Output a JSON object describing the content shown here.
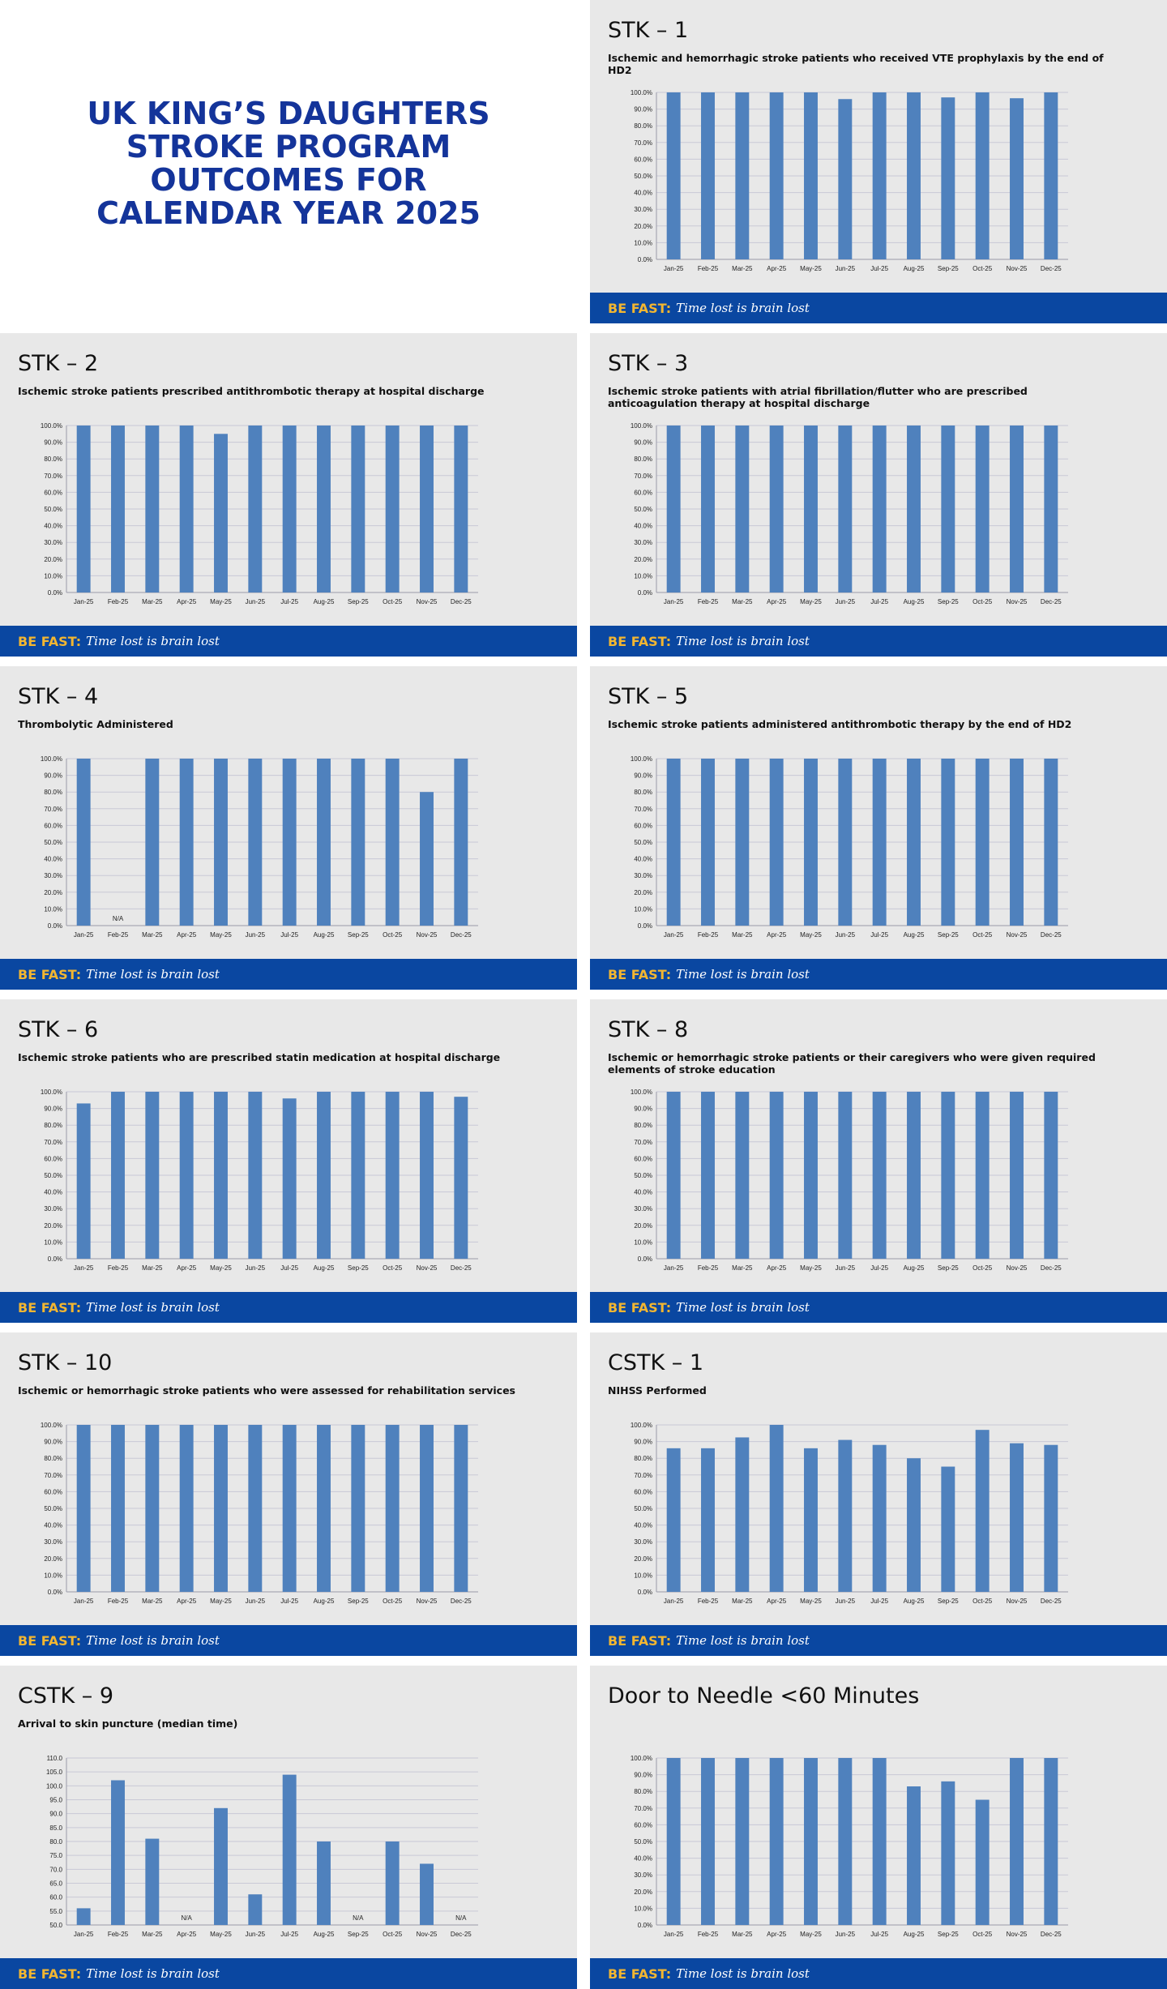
{
  "header": {
    "title": [
      "UK KING’S DAUGHTERS",
      "STROKE PROGRAM",
      "OUTCOMES FOR",
      "CALENDAR YEAR 2025"
    ]
  },
  "footer": {
    "label": "BE FAST:",
    "slogan": "Time lost is brain lost"
  },
  "chart_data": [
    {
      "type": "bar",
      "title": "STK – 1",
      "subtitle": "Ischemic and hemorrhagic stroke patients who received VTE prophylaxis by the end of HD2",
      "categories": [
        "Jan-25",
        "Feb-25",
        "Mar-25",
        "Apr-25",
        "May-25",
        "Jun-25",
        "Jul-25",
        "Aug-25",
        "Sep-25",
        "Oct-25",
        "Nov-25",
        "Dec-25"
      ],
      "values": [
        100,
        100,
        100,
        100,
        100,
        96,
        100,
        100,
        97,
        100,
        96.5,
        100
      ],
      "color": "#4f81bd",
      "ylim": [
        0,
        100
      ],
      "grid": true,
      "yticks": [
        {
          "value": 0,
          "label": "0.0%"
        },
        {
          "value": 10,
          "label": "10.0%"
        },
        {
          "value": 20,
          "label": "20.0%"
        },
        {
          "value": 30,
          "label": "30.0%"
        },
        {
          "value": 40,
          "label": "40.0%"
        },
        {
          "value": 50,
          "label": "50.0%"
        },
        {
          "value": 60,
          "label": "60.0%"
        },
        {
          "value": 70,
          "label": "70.0%"
        },
        {
          "value": 80,
          "label": "80.0%"
        },
        {
          "value": 90,
          "label": "90.0%"
        },
        {
          "value": 100,
          "label": "100.0%"
        }
      ]
    },
    {
      "type": "bar",
      "title": "STK – 2",
      "subtitle": "Ischemic stroke patients prescribed antithrombotic therapy at hospital discharge",
      "categories": [
        "Jan-25",
        "Feb-25",
        "Mar-25",
        "Apr-25",
        "May-25",
        "Jun-25",
        "Jul-25",
        "Aug-25",
        "Sep-25",
        "Oct-25",
        "Nov-25",
        "Dec-25"
      ],
      "values": [
        100,
        100,
        100,
        100,
        95,
        100,
        100,
        100,
        100,
        100,
        100,
        100
      ],
      "color": "#4f81bd",
      "ylim": [
        0,
        100
      ],
      "grid": true,
      "yticks": [
        {
          "value": 0,
          "label": "0.0%"
        },
        {
          "value": 10,
          "label": "10.0%"
        },
        {
          "value": 20,
          "label": "20.0%"
        },
        {
          "value": 30,
          "label": "30.0%"
        },
        {
          "value": 40,
          "label": "40.0%"
        },
        {
          "value": 50,
          "label": "50.0%"
        },
        {
          "value": 60,
          "label": "60.0%"
        },
        {
          "value": 70,
          "label": "70.0%"
        },
        {
          "value": 80,
          "label": "80.0%"
        },
        {
          "value": 90,
          "label": "90.0%"
        },
        {
          "value": 100,
          "label": "100.0%"
        }
      ]
    },
    {
      "type": "bar",
      "title": "STK – 3",
      "subtitle": "Ischemic stroke patients with atrial fibrillation/flutter who are prescribed anticoagulation therapy at hospital discharge",
      "categories": [
        "Jan-25",
        "Feb-25",
        "Mar-25",
        "Apr-25",
        "May-25",
        "Jun-25",
        "Jul-25",
        "Aug-25",
        "Sep-25",
        "Oct-25",
        "Nov-25",
        "Dec-25"
      ],
      "values": [
        100,
        100,
        100,
        100,
        100,
        100,
        100,
        100,
        100,
        100,
        100,
        100
      ],
      "color": "#4f81bd",
      "ylim": [
        0,
        100
      ],
      "grid": true,
      "yticks": [
        {
          "value": 0,
          "label": "0.0%"
        },
        {
          "value": 10,
          "label": "10.0%"
        },
        {
          "value": 20,
          "label": "20.0%"
        },
        {
          "value": 30,
          "label": "30.0%"
        },
        {
          "value": 40,
          "label": "40.0%"
        },
        {
          "value": 50,
          "label": "50.0%"
        },
        {
          "value": 60,
          "label": "60.0%"
        },
        {
          "value": 70,
          "label": "70.0%"
        },
        {
          "value": 80,
          "label": "80.0%"
        },
        {
          "value": 90,
          "label": "90.0%"
        },
        {
          "value": 100,
          "label": "100.0%"
        }
      ]
    },
    {
      "type": "bar",
      "title": "STK – 4",
      "subtitle": "Thrombolytic Administered",
      "categories": [
        "Jan-25",
        "Feb-25",
        "Mar-25",
        "Apr-25",
        "May-25",
        "Jun-25",
        "Jul-25",
        "Aug-25",
        "Sep-25",
        "Oct-25",
        "Nov-25",
        "Dec-25"
      ],
      "values": [
        100,
        null,
        100,
        100,
        100,
        100,
        100,
        100,
        100,
        100,
        80,
        100
      ],
      "value_labels": [
        null,
        "N/A",
        null,
        null,
        null,
        null,
        null,
        null,
        null,
        null,
        null,
        null
      ],
      "color": "#4f81bd",
      "ylim": [
        0,
        100
      ],
      "grid": true,
      "yticks": [
        {
          "value": 0,
          "label": "0.0%"
        },
        {
          "value": 10,
          "label": "10.0%"
        },
        {
          "value": 20,
          "label": "20.0%"
        },
        {
          "value": 30,
          "label": "30.0%"
        },
        {
          "value": 40,
          "label": "40.0%"
        },
        {
          "value": 50,
          "label": "50.0%"
        },
        {
          "value": 60,
          "label": "60.0%"
        },
        {
          "value": 70,
          "label": "70.0%"
        },
        {
          "value": 80,
          "label": "80.0%"
        },
        {
          "value": 90,
          "label": "90.0%"
        },
        {
          "value": 100,
          "label": "100.0%"
        }
      ]
    },
    {
      "type": "bar",
      "title": "STK – 5",
      "subtitle": "Ischemic stroke patients administered antithrombotic therapy by the end of HD2",
      "categories": [
        "Jan-25",
        "Feb-25",
        "Mar-25",
        "Apr-25",
        "May-25",
        "Jun-25",
        "Jul-25",
        "Aug-25",
        "Sep-25",
        "Oct-25",
        "Nov-25",
        "Dec-25"
      ],
      "values": [
        100,
        100,
        100,
        100,
        100,
        100,
        100,
        100,
        100,
        100,
        100,
        100
      ],
      "color": "#4f81bd",
      "ylim": [
        0,
        100
      ],
      "grid": true,
      "yticks": [
        {
          "value": 0,
          "label": "0.0%"
        },
        {
          "value": 10,
          "label": "10.0%"
        },
        {
          "value": 20,
          "label": "20.0%"
        },
        {
          "value": 30,
          "label": "30.0%"
        },
        {
          "value": 40,
          "label": "40.0%"
        },
        {
          "value": 50,
          "label": "50.0%"
        },
        {
          "value": 60,
          "label": "60.0%"
        },
        {
          "value": 70,
          "label": "70.0%"
        },
        {
          "value": 80,
          "label": "80.0%"
        },
        {
          "value": 90,
          "label": "90.0%"
        },
        {
          "value": 100,
          "label": "100.0%"
        }
      ]
    },
    {
      "type": "bar",
      "title": "STK – 6",
      "subtitle": "Ischemic stroke patients who are prescribed statin medication at hospital discharge",
      "categories": [
        "Jan-25",
        "Feb-25",
        "Mar-25",
        "Apr-25",
        "May-25",
        "Jun-25",
        "Jul-25",
        "Aug-25",
        "Sep-25",
        "Oct-25",
        "Nov-25",
        "Dec-25"
      ],
      "values": [
        93,
        100,
        100,
        100,
        100,
        100,
        96,
        100,
        100,
        100,
        100,
        97
      ],
      "color": "#4f81bd",
      "ylim": [
        0,
        100
      ],
      "grid": true,
      "yticks": [
        {
          "value": 0,
          "label": "0.0%"
        },
        {
          "value": 10,
          "label": "10.0%"
        },
        {
          "value": 20,
          "label": "20.0%"
        },
        {
          "value": 30,
          "label": "30.0%"
        },
        {
          "value": 40,
          "label": "40.0%"
        },
        {
          "value": 50,
          "label": "50.0%"
        },
        {
          "value": 60,
          "label": "60.0%"
        },
        {
          "value": 70,
          "label": "70.0%"
        },
        {
          "value": 80,
          "label": "80.0%"
        },
        {
          "value": 90,
          "label": "90.0%"
        },
        {
          "value": 100,
          "label": "100.0%"
        }
      ]
    },
    {
      "type": "bar",
      "title": "STK – 8",
      "subtitle": "Ischemic or hemorrhagic stroke patients or their caregivers who were given required elements of stroke education",
      "categories": [
        "Jan-25",
        "Feb-25",
        "Mar-25",
        "Apr-25",
        "May-25",
        "Jun-25",
        "Jul-25",
        "Aug-25",
        "Sep-25",
        "Oct-25",
        "Nov-25",
        "Dec-25"
      ],
      "values": [
        100,
        100,
        100,
        100,
        100,
        100,
        100,
        100,
        100,
        100,
        100,
        100
      ],
      "color": "#4f81bd",
      "ylim": [
        0,
        100
      ],
      "grid": true,
      "yticks": [
        {
          "value": 0,
          "label": "0.0%"
        },
        {
          "value": 10,
          "label": "10.0%"
        },
        {
          "value": 20,
          "label": "20.0%"
        },
        {
          "value": 30,
          "label": "30.0%"
        },
        {
          "value": 40,
          "label": "40.0%"
        },
        {
          "value": 50,
          "label": "50.0%"
        },
        {
          "value": 60,
          "label": "60.0%"
        },
        {
          "value": 70,
          "label": "70.0%"
        },
        {
          "value": 80,
          "label": "80.0%"
        },
        {
          "value": 90,
          "label": "90.0%"
        },
        {
          "value": 100,
          "label": "100.0%"
        }
      ]
    },
    {
      "type": "bar",
      "title": "STK – 10",
      "subtitle": "Ischemic or hemorrhagic stroke patients who were assessed for rehabilitation services",
      "categories": [
        "Jan-25",
        "Feb-25",
        "Mar-25",
        "Apr-25",
        "May-25",
        "Jun-25",
        "Jul-25",
        "Aug-25",
        "Sep-25",
        "Oct-25",
        "Nov-25",
        "Dec-25"
      ],
      "values": [
        100,
        100,
        100,
        100,
        100,
        100,
        100,
        100,
        100,
        100,
        100,
        100
      ],
      "color": "#4f81bd",
      "ylim": [
        0,
        100
      ],
      "grid": true,
      "yticks": [
        {
          "value": 0,
          "label": "0.0%"
        },
        {
          "value": 10,
          "label": "10.0%"
        },
        {
          "value": 20,
          "label": "20.0%"
        },
        {
          "value": 30,
          "label": "30.0%"
        },
        {
          "value": 40,
          "label": "40.0%"
        },
        {
          "value": 50,
          "label": "50.0%"
        },
        {
          "value": 60,
          "label": "60.0%"
        },
        {
          "value": 70,
          "label": "70.0%"
        },
        {
          "value": 80,
          "label": "80.0%"
        },
        {
          "value": 90,
          "label": "90.0%"
        },
        {
          "value": 100,
          "label": "100.0%"
        }
      ]
    },
    {
      "type": "bar",
      "title": "CSTK – 1",
      "subtitle": "NIHSS Performed",
      "categories": [
        "Jan-25",
        "Feb-25",
        "Mar-25",
        "Apr-25",
        "May-25",
        "Jun-25",
        "Jul-25",
        "Aug-25",
        "Sep-25",
        "Oct-25",
        "Nov-25",
        "Dec-25"
      ],
      "values": [
        86,
        86,
        92.5,
        100,
        86,
        91,
        88,
        80,
        75,
        97,
        89,
        88
      ],
      "color": "#4f81bd",
      "ylim": [
        0,
        100
      ],
      "grid": true,
      "yticks": [
        {
          "value": 0,
          "label": "0.0%"
        },
        {
          "value": 10,
          "label": "10.0%"
        },
        {
          "value": 20,
          "label": "20.0%"
        },
        {
          "value": 30,
          "label": "30.0%"
        },
        {
          "value": 40,
          "label": "40.0%"
        },
        {
          "value": 50,
          "label": "50.0%"
        },
        {
          "value": 60,
          "label": "60.0%"
        },
        {
          "value": 70,
          "label": "70.0%"
        },
        {
          "value": 80,
          "label": "80.0%"
        },
        {
          "value": 90,
          "label": "90.0%"
        },
        {
          "value": 100,
          "label": "100.0%"
        }
      ]
    },
    {
      "type": "bar",
      "title": "CSTK – 9",
      "subtitle": "Arrival to skin puncture (median time)",
      "categories": [
        "Jan-25",
        "Feb-25",
        "Mar-25",
        "Apr-25",
        "May-25",
        "Jun-25",
        "Jul-25",
        "Aug-25",
        "Sep-25",
        "Oct-25",
        "Nov-25",
        "Dec-25"
      ],
      "values": [
        56,
        102,
        81,
        null,
        92,
        61,
        104,
        80,
        null,
        80,
        72,
        null
      ],
      "value_labels": [
        null,
        null,
        null,
        "N/A",
        null,
        null,
        null,
        null,
        "N/A",
        null,
        null,
        "N/A"
      ],
      "color": "#4f81bd",
      "ylim": [
        50,
        110
      ],
      "grid": true,
      "yticks": [
        {
          "value": 50,
          "label": "50.0"
        },
        {
          "value": 55,
          "label": "55.0"
        },
        {
          "value": 60,
          "label": "60.0"
        },
        {
          "value": 65,
          "label": "65.0"
        },
        {
          "value": 70,
          "label": "70.0"
        },
        {
          "value": 75,
          "label": "75.0"
        },
        {
          "value": 80,
          "label": "80.0"
        },
        {
          "value": 85,
          "label": "85.0"
        },
        {
          "value": 90,
          "label": "90.0"
        },
        {
          "value": 95,
          "label": "95.0"
        },
        {
          "value": 100,
          "label": "100.0"
        },
        {
          "value": 105,
          "label": "105.0"
        },
        {
          "value": 110,
          "label": "110.0"
        }
      ]
    },
    {
      "type": "bar",
      "title": "Door to Needle <60 Minutes",
      "categories": [
        "Jan-25",
        "Feb-25",
        "Mar-25",
        "Apr-25",
        "May-25",
        "Jun-25",
        "Jul-25",
        "Aug-25",
        "Sep-25",
        "Oct-25",
        "Nov-25",
        "Dec-25"
      ],
      "values": [
        100,
        100,
        100,
        100,
        100,
        100,
        100,
        83,
        86,
        75,
        100,
        100
      ],
      "color": "#4f81bd",
      "ylim": [
        0,
        100
      ],
      "grid": true,
      "yticks": [
        {
          "value": 0,
          "label": "0.0%"
        },
        {
          "value": 10,
          "label": "10.0%"
        },
        {
          "value": 20,
          "label": "20.0%"
        },
        {
          "value": 30,
          "label": "30.0%"
        },
        {
          "value": 40,
          "label": "40.0%"
        },
        {
          "value": 50,
          "label": "50.0%"
        },
        {
          "value": 60,
          "label": "60.0%"
        },
        {
          "value": 70,
          "label": "70.0%"
        },
        {
          "value": 80,
          "label": "80.0%"
        },
        {
          "value": 90,
          "label": "90.0%"
        },
        {
          "value": 100,
          "label": "100.0%"
        }
      ]
    }
  ]
}
